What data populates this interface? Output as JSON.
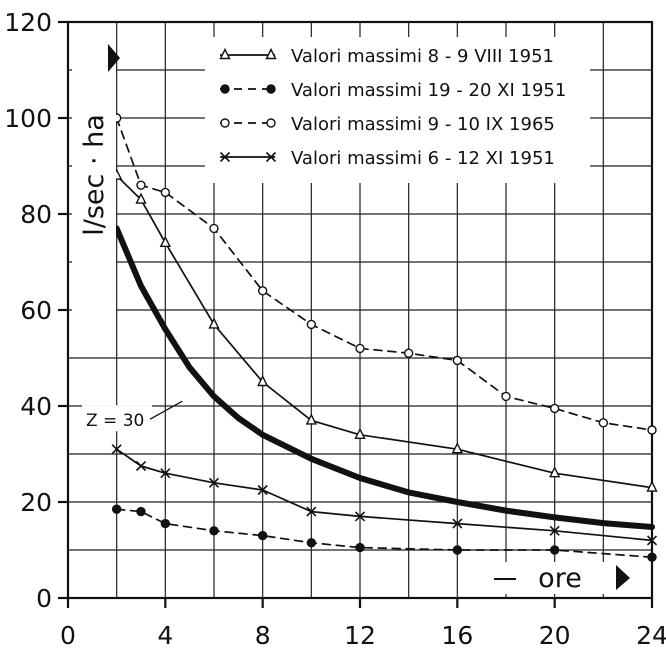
{
  "chart_data": {
    "type": "line",
    "title": "",
    "xlabel": "ore",
    "ylabel": "l/sec · ha",
    "xlim": [
      0,
      24
    ],
    "ylim": [
      0,
      120
    ],
    "grid": true,
    "legend_position": "top-right",
    "x_ticks": [
      "0",
      "4",
      "8",
      "12",
      "16",
      "20",
      "24"
    ],
    "y_ticks": [
      "0",
      "20",
      "40",
      "60",
      "80",
      "100",
      "120"
    ],
    "series": [
      {
        "name": "Valori massimi  8 - 9 VIII 1951",
        "marker": "triangle",
        "dash": "solid",
        "weight": "normal",
        "points": [
          [
            2,
            88
          ],
          [
            3,
            83
          ],
          [
            4,
            74
          ],
          [
            6,
            57
          ],
          [
            8,
            45
          ],
          [
            10,
            37
          ],
          [
            12,
            34
          ],
          [
            16,
            31
          ],
          [
            20,
            26
          ],
          [
            24,
            23
          ]
        ]
      },
      {
        "name": "Valori massimi 19 - 20 XI  1951",
        "marker": "filled-circle",
        "dash": "dashed",
        "weight": "normal",
        "points": [
          [
            2,
            18.5
          ],
          [
            3,
            18
          ],
          [
            4,
            15.5
          ],
          [
            6,
            14
          ],
          [
            8,
            13
          ],
          [
            10,
            11.5
          ],
          [
            12,
            10.5
          ],
          [
            16,
            10
          ],
          [
            20,
            10
          ],
          [
            24,
            8.5
          ]
        ]
      },
      {
        "name": "Valori massimi  9 - 10 IX  1965",
        "marker": "open-circle",
        "dash": "dashed",
        "weight": "normal",
        "points": [
          [
            2,
            100
          ],
          [
            3,
            86
          ],
          [
            4,
            84.5
          ],
          [
            6,
            77
          ],
          [
            8,
            64
          ],
          [
            10,
            57
          ],
          [
            12,
            52
          ],
          [
            14,
            51
          ],
          [
            16,
            49.5
          ],
          [
            18,
            42
          ],
          [
            20,
            39.5
          ],
          [
            22,
            36.5
          ],
          [
            24,
            35
          ]
        ]
      },
      {
        "name": "Valori massimi  6 - 12 XI  1951",
        "marker": "x",
        "dash": "solid",
        "weight": "normal",
        "points": [
          [
            2,
            31
          ],
          [
            3,
            27.5
          ],
          [
            4,
            26
          ],
          [
            6,
            24
          ],
          [
            8,
            22.5
          ],
          [
            10,
            18
          ],
          [
            12,
            17
          ],
          [
            16,
            15.5
          ],
          [
            20,
            14
          ],
          [
            24,
            12
          ]
        ]
      },
      {
        "name": "",
        "marker": "none",
        "dash": "solid",
        "weight": "bold",
        "points": [
          [
            2,
            77
          ],
          [
            3,
            65
          ],
          [
            4,
            56
          ],
          [
            5,
            48
          ],
          [
            6,
            42
          ],
          [
            7,
            37.5
          ],
          [
            8,
            34
          ],
          [
            10,
            29
          ],
          [
            12,
            25
          ],
          [
            14,
            22
          ],
          [
            16,
            20
          ],
          [
            18,
            18.2
          ],
          [
            20,
            16.8
          ],
          [
            22,
            15.6
          ],
          [
            24,
            14.8
          ]
        ]
      }
    ],
    "annotations": [
      {
        "text": "Z = 30",
        "x": 4.7,
        "y": 41,
        "target_series": 4
      }
    ]
  }
}
